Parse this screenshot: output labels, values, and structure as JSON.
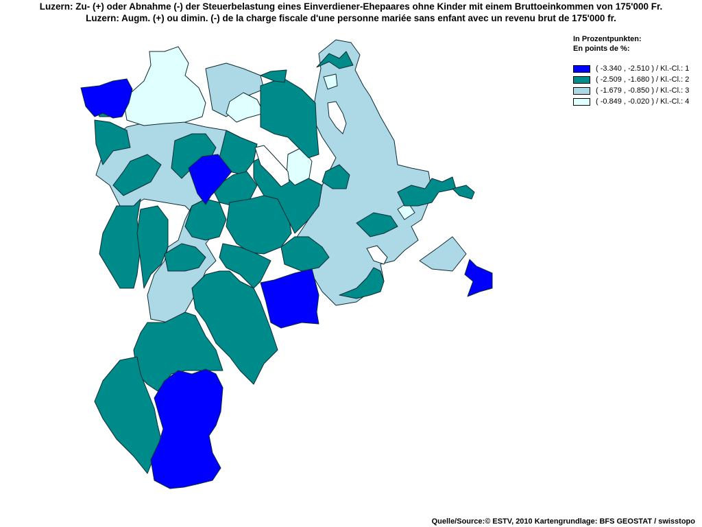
{
  "title_de": "Luzern: Zu- (+) oder Abnahme (-) der Steuerbelastung eines Einverdiener-Ehepaares ohne Kinder mit einem Bruttoeinkommen von 175'000 Fr.",
  "title_fr": "Luzern: Augm. (+) ou dimin. (-) de la charge fiscale d'une personne mariée sans enfant avec un revenu brut de 175'000 fr.",
  "legend": {
    "title_1": "In Prozentpunkten:",
    "title_2": "En points de %:",
    "classes": [
      {
        "label": "( -3.340 , -2.510 ) / Kl.-Cl.: 1",
        "color": "#0000ff"
      },
      {
        "label": "( -2.509 , -1.680 ) / Kl.-Cl.: 2",
        "color": "#008b8b"
      },
      {
        "label": "( -1.679 , -0.850 ) / Kl.-Cl.: 3",
        "color": "#add8e6"
      },
      {
        "label": "( -0.849 , -0.020 ) / Kl.-Cl.: 4",
        "color": "#e0ffff"
      }
    ]
  },
  "source": "Quelle/Source:© ESTV, 2010 Kartengrundlage: BFS GEOSTAT / swisstopo",
  "colors": {
    "class1": "#0000ff",
    "class2": "#008b8b",
    "class3": "#add8e6",
    "class4": "#e0ffff",
    "lake": "#ffffff"
  }
}
